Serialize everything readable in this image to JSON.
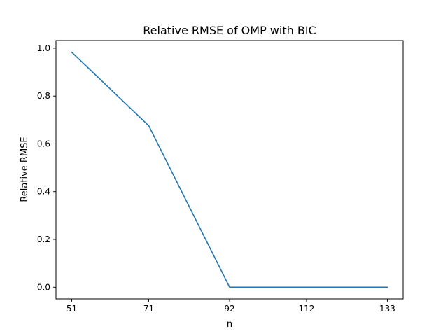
{
  "chart_data": {
    "type": "line",
    "title": "Relative RMSE of OMP with BIC",
    "xlabel": "n",
    "ylabel": "Relative RMSE",
    "x": [
      51,
      71,
      92,
      112,
      133
    ],
    "series": [
      {
        "name": "Relative RMSE",
        "values": [
          0.983,
          0.676,
          0.0,
          0.0,
          0.0
        ],
        "color": "#1f77b4"
      }
    ],
    "xticks": [
      51,
      71,
      92,
      112,
      133
    ],
    "yticks": [
      0.0,
      0.2,
      0.4,
      0.6,
      0.8,
      1.0
    ],
    "ytick_labels": [
      "0.0",
      "0.2",
      "0.4",
      "0.6",
      "0.8",
      "1.0"
    ],
    "xlim": [
      46.9,
      137.1
    ],
    "ylim": [
      -0.049,
      1.032
    ],
    "grid": false,
    "legend": "none"
  }
}
